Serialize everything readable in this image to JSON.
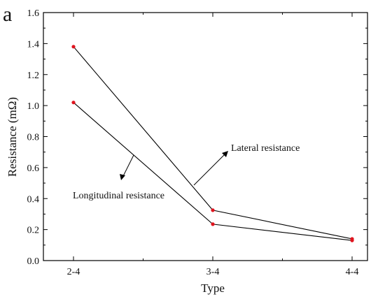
{
  "panel_label": "a",
  "chart_data": {
    "type": "line",
    "title": "",
    "xlabel": "Type",
    "ylabel": "Resistance (mΩ)",
    "categories": [
      "2-4",
      "3-4",
      "4-4"
    ],
    "ylim": [
      0.0,
      1.6
    ],
    "yticks": [
      "0.0",
      "0.2",
      "0.4",
      "0.6",
      "0.8",
      "1.0",
      "1.2",
      "1.4",
      "1.6"
    ],
    "grid": false,
    "series": [
      {
        "name": "Lateral resistance",
        "values": [
          1.38,
          0.325,
          0.14
        ]
      },
      {
        "name": "Longitudinal resistance",
        "values": [
          1.02,
          0.235,
          0.13
        ]
      }
    ],
    "colors": {
      "line": "#000000",
      "marker": "#e0141e",
      "axis": "#000000"
    }
  }
}
